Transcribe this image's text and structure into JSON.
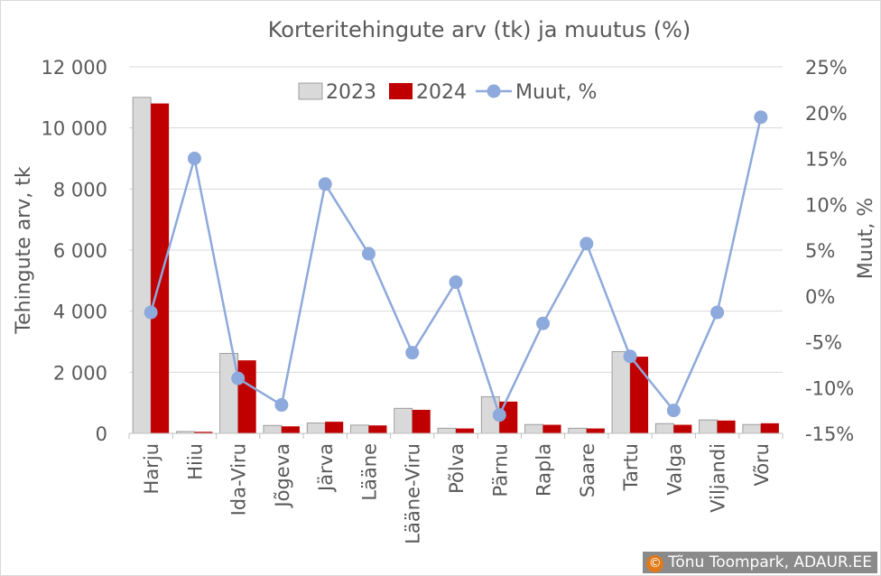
{
  "credit": {
    "symbol": "©",
    "text": "Tõnu Toompark, ADAUR.EE"
  },
  "chart_data": {
    "type": "bar",
    "title": "Korteritehingute arv (tk) ja muutus (%)",
    "ylabel": "Tehingute arv, tk",
    "y2label": "Muut, %",
    "ylim": [
      0,
      12000
    ],
    "y2lim": [
      -15,
      25
    ],
    "yticks": [
      "0",
      "2 000",
      "4 000",
      "6 000",
      "8 000",
      "10 000",
      "12 000"
    ],
    "y2ticks": [
      "-15%",
      "-10%",
      "-5%",
      "0%",
      "5%",
      "10%",
      "15%",
      "20%",
      "25%"
    ],
    "categories": [
      "Harju",
      "Hiiu",
      "Ida-Viru",
      "Jõgeva",
      "Järva",
      "Lääne",
      "Lääne-Viru",
      "Põlva",
      "Pärnu",
      "Rapla",
      "Saare",
      "Tartu",
      "Valga",
      "Viljandi",
      "Võru"
    ],
    "series": [
      {
        "name": "2023",
        "kind": "bar",
        "color": "#d9d9d9",
        "values": [
          11000,
          60,
          2620,
          260,
          340,
          270,
          820,
          170,
          1200,
          290,
          170,
          2680,
          320,
          440,
          290
        ]
      },
      {
        "name": "2024",
        "kind": "bar",
        "color": "#c00000",
        "values": [
          10800,
          50,
          2390,
          230,
          380,
          260,
          770,
          160,
          1040,
          280,
          160,
          2510,
          280,
          420,
          330
        ]
      },
      {
        "name": "Muut, %",
        "kind": "line",
        "axis": "right",
        "color": "#8ea9db",
        "values": [
          -1.8,
          15,
          -9,
          -11.9,
          12.2,
          4.6,
          -6.2,
          1.5,
          -13,
          -3,
          5.7,
          -6.6,
          -12.5,
          -1.8,
          19.5
        ]
      }
    ],
    "legend_position": "top-center",
    "grid": true
  }
}
